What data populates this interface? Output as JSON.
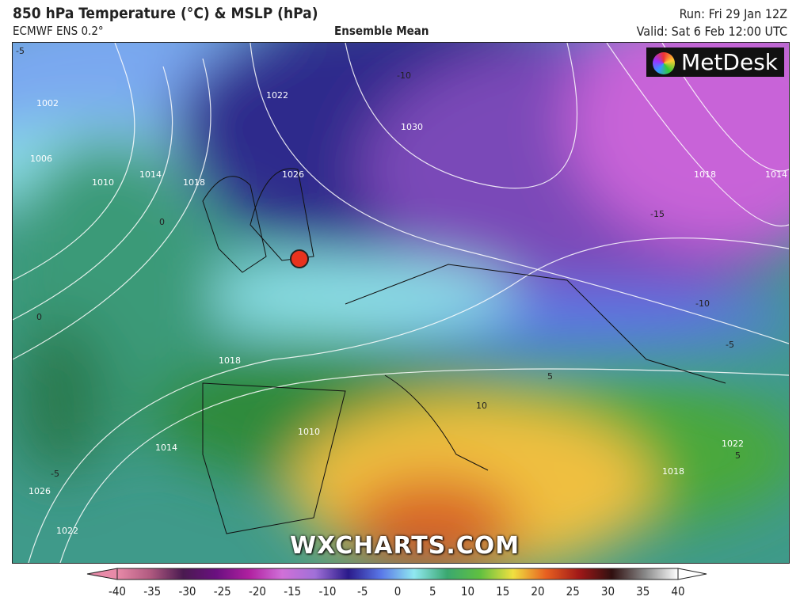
{
  "header": {
    "title": "850 hPa Temperature (°C) & MSLP (hPa)",
    "model": "ECMWF ENS 0.2°",
    "product": "Ensemble Mean",
    "run": "Run: Fri 29 Jan 12Z",
    "valid": "Valid: Sat 6 Feb 12:00 UTC"
  },
  "map": {
    "logo": "MetDesk",
    "watermark": "WXCHARTS.COM",
    "marker_color": "#e8321e",
    "isobar_labels": [
      "1002",
      "1006",
      "1010",
      "1014",
      "1018",
      "1022",
      "1026",
      "1030",
      "1018",
      "1014",
      "1018",
      "1010",
      "1014",
      "1026",
      "1022",
      "1018",
      "1022"
    ],
    "temperature_labels": [
      "-5",
      "0",
      "-10",
      "-15",
      "-10",
      "-5",
      "5",
      "10",
      "-5",
      "0",
      "5"
    ]
  },
  "colorbar": {
    "ticks": [
      "-40",
      "-35",
      "-30",
      "-25",
      "-20",
      "-15",
      "-10",
      "-5",
      "0",
      "5",
      "10",
      "15",
      "20",
      "25",
      "30",
      "35",
      "40"
    ],
    "colors": [
      "#e88aa8",
      "#b05a80",
      "#4a1a50",
      "#6a1080",
      "#b020a0",
      "#d070d8",
      "#a070d8",
      "#2a1a8a",
      "#5a78e8",
      "#90e8f0",
      "#3aa870",
      "#60c040",
      "#f0e040",
      "#e86020",
      "#a01818",
      "#301010",
      "#888888",
      "#ffffff"
    ]
  }
}
